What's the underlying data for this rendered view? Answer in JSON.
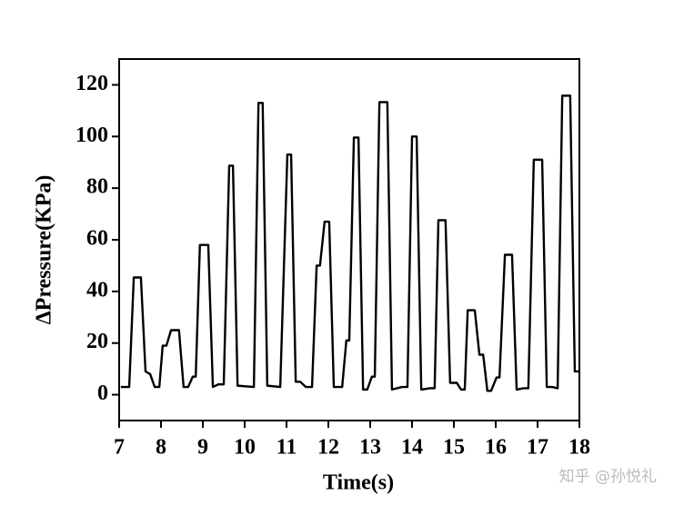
{
  "chart_data": {
    "type": "line",
    "x_label": "Time(s)",
    "y_label": "ΔPressure(KPa)",
    "watermark": "知乎 @孙悦礼",
    "xlim": [
      7,
      18
    ],
    "xticks": [
      7,
      8,
      9,
      10,
      11,
      12,
      13,
      14,
      15,
      16,
      17,
      18
    ],
    "ylim": [
      -10,
      130
    ],
    "yticks": [
      0,
      20,
      40,
      60,
      80,
      100,
      120
    ],
    "series": [
      {
        "color": "#000000",
        "x": [
          7.04,
          7.24,
          7.35,
          7.52,
          7.63,
          7.74,
          7.85,
          7.96,
          8.04,
          8.13,
          8.24,
          8.43,
          8.54,
          8.65,
          8.76,
          8.83,
          8.93,
          9.13,
          9.24,
          9.37,
          9.5,
          9.63,
          9.72,
          9.83,
          10.22,
          10.33,
          10.43,
          10.54,
          10.85,
          11.02,
          11.11,
          11.22,
          11.33,
          11.46,
          11.61,
          11.72,
          11.8,
          11.91,
          12.02,
          12.13,
          12.33,
          12.43,
          12.5,
          12.61,
          12.72,
          12.83,
          12.93,
          13.04,
          13.11,
          13.22,
          13.41,
          13.52,
          13.76,
          13.89,
          14,
          14.11,
          14.22,
          14.43,
          14.54,
          14.63,
          14.8,
          14.91,
          15.07,
          15.17,
          15.26,
          15.33,
          15.5,
          15.61,
          15.7,
          15.8,
          15.89,
          16.02,
          16.09,
          16.22,
          16.39,
          16.5,
          16.67,
          16.78,
          16.91,
          17.11,
          17.22,
          17.35,
          17.48,
          17.59,
          17.78,
          17.89,
          18
        ],
        "values": [
          3,
          3,
          45.4,
          45.4,
          9,
          8,
          3,
          3,
          19,
          19,
          25,
          25,
          3,
          3,
          7,
          7,
          58,
          58,
          3,
          4,
          4,
          88.7,
          88.7,
          3.5,
          3,
          113,
          113,
          3.5,
          3,
          93,
          93,
          5,
          5,
          3,
          3,
          50,
          50,
          67,
          67,
          3,
          3,
          21,
          21,
          99.6,
          99.6,
          2,
          2,
          7,
          7,
          113.3,
          113.3,
          2,
          3,
          3,
          100,
          100,
          2,
          2.5,
          2.5,
          67.6,
          67.6,
          4.6,
          4.6,
          2,
          2,
          32.7,
          32.7,
          15.5,
          15.5,
          1.5,
          1.5,
          6.7,
          6.7,
          54.2,
          54.2,
          2,
          2.5,
          2.5,
          91,
          91,
          3,
          3,
          2.5,
          115.8,
          115.8,
          9,
          9
        ]
      }
    ]
  }
}
